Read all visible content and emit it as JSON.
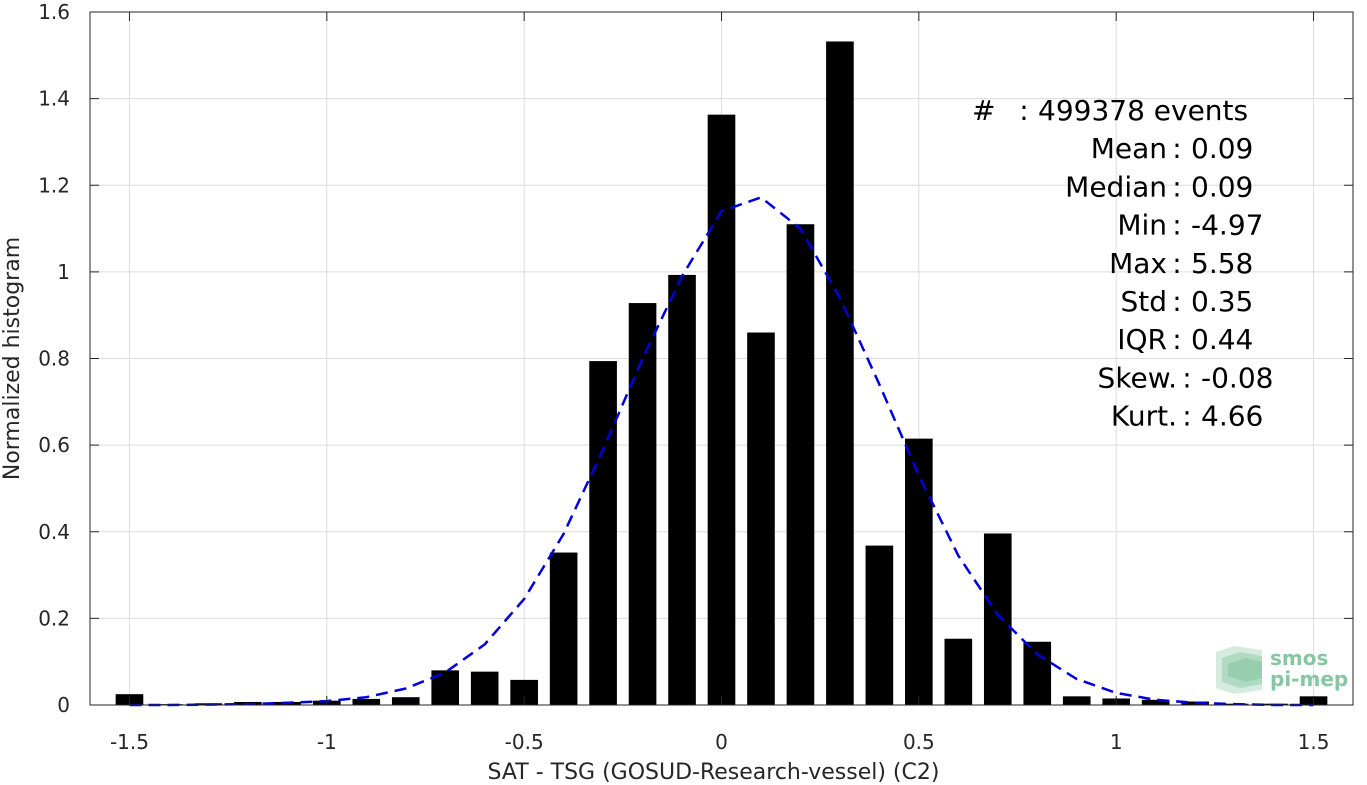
{
  "chart_data": {
    "type": "bar",
    "title": "",
    "xlabel": "SAT - TSG (GOSUD-Research-vessel) (C2)",
    "ylabel": "Normalized histogram",
    "xlim": [
      -1.6,
      1.6
    ],
    "ylim": [
      0,
      1.6
    ],
    "xticks": [
      -1.5,
      -1,
      -0.5,
      0,
      0.5,
      1,
      1.5
    ],
    "xtick_labels": [
      "-1.5",
      "-1",
      "-0.5",
      "0",
      "0.5",
      "1",
      "1.5"
    ],
    "yticks": [
      0,
      0.2,
      0.4,
      0.6,
      0.8,
      1,
      1.2,
      1.4,
      1.6
    ],
    "ytick_labels": [
      "0",
      "0.2",
      "0.4",
      "0.6",
      "0.8",
      "1",
      "1.2",
      "1.4",
      "1.6"
    ],
    "grid": true,
    "bar_width": 0.07,
    "x": [
      -1.5,
      -1.4,
      -1.3,
      -1.2,
      -1.1,
      -1.0,
      -0.9,
      -0.8,
      -0.7,
      -0.6,
      -0.5,
      -0.4,
      -0.3,
      -0.2,
      -0.1,
      0.0,
      0.1,
      0.2,
      0.3,
      0.4,
      0.5,
      0.6,
      0.7,
      0.8,
      0.9,
      1.0,
      1.1,
      1.2,
      1.3,
      1.4,
      1.5
    ],
    "values": [
      0.025,
      0.002,
      0.004,
      0.007,
      0.007,
      0.01,
      0.014,
      0.018,
      0.08,
      0.077,
      0.058,
      0.352,
      0.794,
      0.928,
      0.993,
      1.363,
      0.86,
      1.11,
      1.532,
      0.368,
      0.615,
      0.153,
      0.396,
      0.146,
      0.02,
      0.015,
      0.012,
      0.008,
      0.003,
      0.003,
      0.02
    ],
    "fit_curve": {
      "style": "dashed",
      "x": [
        -1.5,
        -1.4,
        -1.3,
        -1.2,
        -1.1,
        -1.0,
        -0.9,
        -0.8,
        -0.7,
        -0.6,
        -0.5,
        -0.4,
        -0.3,
        -0.2,
        -0.1,
        0.0,
        0.1,
        0.2,
        0.3,
        0.4,
        0.5,
        0.6,
        0.7,
        0.8,
        0.9,
        1.0,
        1.1,
        1.2,
        1.3,
        1.4,
        1.5
      ],
      "y": [
        0.0,
        0.0,
        0.001,
        0.002,
        0.005,
        0.009,
        0.018,
        0.038,
        0.075,
        0.14,
        0.245,
        0.395,
        0.59,
        0.8,
        0.99,
        1.14,
        1.172,
        1.1,
        0.94,
        0.74,
        0.53,
        0.345,
        0.208,
        0.117,
        0.06,
        0.028,
        0.012,
        0.005,
        0.002,
        0.0,
        0.0
      ]
    },
    "bar_color": "#000000",
    "curve_color": "#0000dd",
    "stats": [
      {
        "label": "#",
        "sep": ":",
        "value": "499378 events"
      },
      {
        "label": "Mean",
        "sep": ":",
        "value": "0.09"
      },
      {
        "label": "Median",
        "sep": ":",
        "value": "0.09"
      },
      {
        "label": "Min",
        "sep": ":",
        "value": "-4.97"
      },
      {
        "label": "Max",
        "sep": ":",
        "value": "5.58"
      },
      {
        "label": "Std",
        "sep": ":",
        "value": "0.35"
      },
      {
        "label": "IQR",
        "sep": ":",
        "value": "0.44"
      },
      {
        "label": "Skew.",
        "sep": ":",
        "value": "-0.08"
      },
      {
        "label": "Kurt.",
        "sep": ":",
        "value": "4.66"
      }
    ]
  },
  "logo": {
    "line1": "smos",
    "line2": "pi-mep",
    "icon": "smos-pimep-logo-icon",
    "color": "#86c6a2"
  }
}
